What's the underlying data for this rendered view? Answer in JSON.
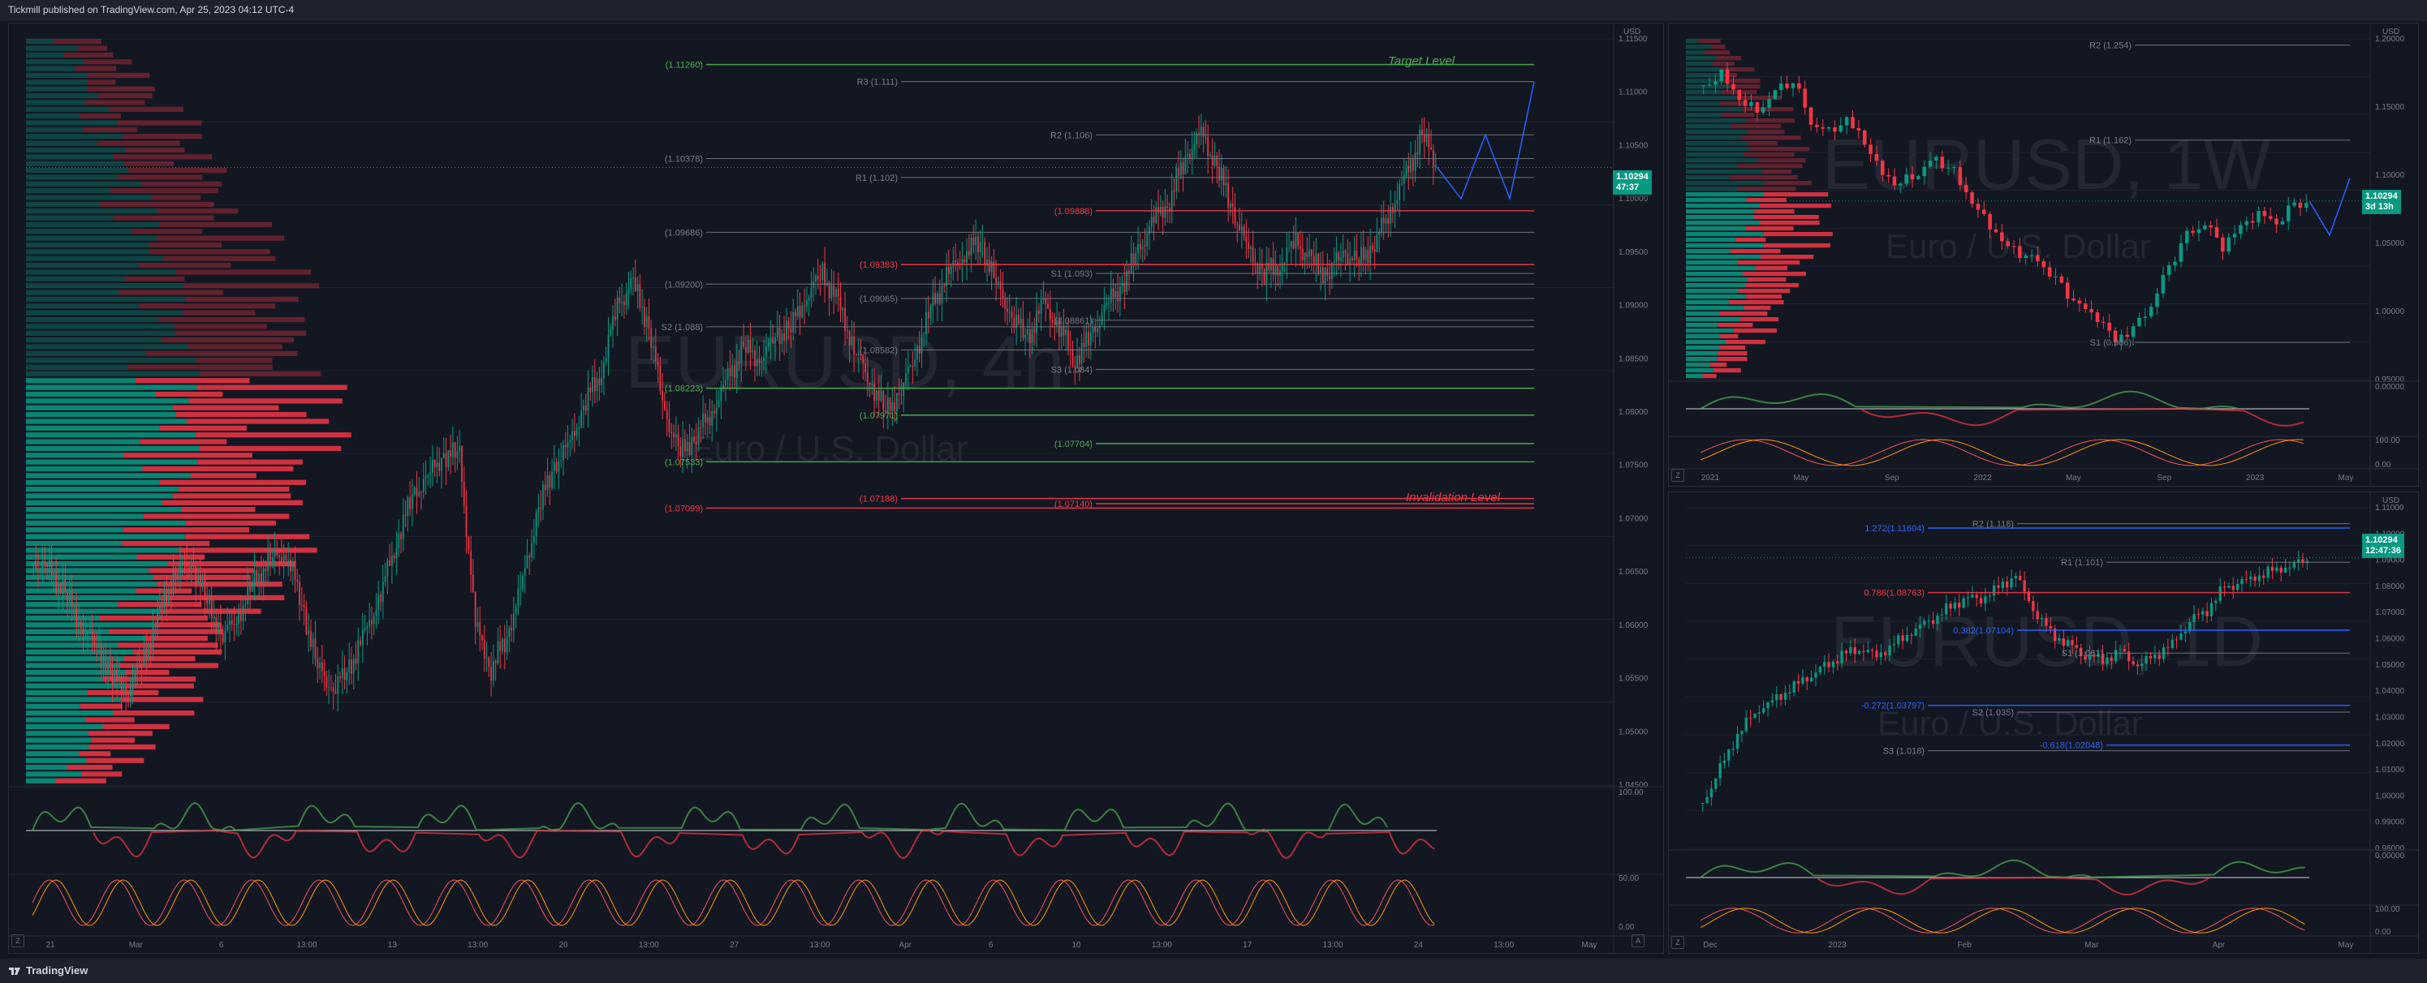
{
  "header": {
    "published": "Tickmill published on TradingView.com, Apr 25, 2023 04:12 UTC-4"
  },
  "footer": {
    "brand": "TradingView",
    "logo_icon": "tradingview-logo-icon"
  },
  "colors": {
    "bull": "#089981",
    "bear": "#f23645",
    "bg": "#131722",
    "target": "#4caf50",
    "invalid": "#f23645",
    "projection": "#2962ff"
  },
  "main": {
    "symbol_watermark": "EURUSD, 4h",
    "desc_watermark": "Euro / U.S. Dollar",
    "annotations": {
      "target": "Target Level",
      "invalidation": "Invalidation Level"
    },
    "price_badge": {
      "price": "1.10294",
      "countdown": "47:37"
    },
    "axis_currency": "USD",
    "zoom_label": "Z",
    "auto_label": "A",
    "chart_data": {
      "type": "candlestick",
      "title": "EURUSD, 4h",
      "x_labels": [
        "21",
        "Mar",
        "6",
        "13:00",
        "13",
        "13:00",
        "20",
        "13:00",
        "27",
        "13:00",
        "Apr",
        "6",
        "10",
        "13:00",
        "17",
        "13:00",
        "24",
        "13:00",
        "May"
      ],
      "ylim": [
        1.045,
        1.115
      ],
      "price_ticks": [
        "1.11500",
        "1.11000",
        "1.10500",
        "1.10000",
        "1.09500",
        "1.09000",
        "1.08500",
        "1.08000",
        "1.07500",
        "1.07000",
        "1.06500",
        "1.06000",
        "1.05500",
        "1.05000",
        "1.04500"
      ],
      "levels": [
        {
          "label": "(1.11260)",
          "value": 1.1126,
          "color": "#4caf50"
        },
        {
          "label": "R3 (1.111)",
          "value": 1.111,
          "color": "#787b86"
        },
        {
          "label": "R2 (1.106)",
          "value": 1.106,
          "color": "#787b86"
        },
        {
          "label": "(1.10378)",
          "value": 1.10378,
          "color": "#787b86"
        },
        {
          "label": "R1 (1.102)",
          "value": 1.102,
          "color": "#787b86"
        },
        {
          "label": "(1.09888)",
          "value": 1.09888,
          "color": "#f23645"
        },
        {
          "label": "(1.09686)",
          "value": 1.09686,
          "color": "#787b86"
        },
        {
          "label": "(1.09383)",
          "value": 1.09383,
          "color": "#f23645"
        },
        {
          "label": "S1 (1.093)",
          "value": 1.093,
          "color": "#787b86"
        },
        {
          "label": "(1.09200)",
          "value": 1.092,
          "color": "#787b86"
        },
        {
          "label": "(1.09065)",
          "value": 1.09065,
          "color": "#787b86"
        },
        {
          "label": "(1.08861)",
          "value": 1.08861,
          "color": "#787b86"
        },
        {
          "label": "S2 (1.088)",
          "value": 1.088,
          "color": "#787b86"
        },
        {
          "label": "(1.08582)",
          "value": 1.08582,
          "color": "#787b86"
        },
        {
          "label": "S3 (1.084)",
          "value": 1.084,
          "color": "#787b86"
        },
        {
          "label": "(1.08223)",
          "value": 1.08223,
          "color": "#4caf50"
        },
        {
          "label": "(1.07971)",
          "value": 1.07971,
          "color": "#4caf50"
        },
        {
          "label": "(1.07704)",
          "value": 1.07704,
          "color": "#4caf50"
        },
        {
          "label": "(1.07533)",
          "value": 1.07533,
          "color": "#4caf50"
        },
        {
          "label": "(1.07188)",
          "value": 1.07188,
          "color": "#f23645"
        },
        {
          "label": "(1.07140)",
          "value": 1.0714,
          "color": "#f23645"
        },
        {
          "label": "(1.07099)",
          "value": 1.07099,
          "color": "#f23645"
        }
      ],
      "close_path": [
        1.066,
        1.065,
        1.063,
        1.06,
        1.058,
        1.055,
        1.054,
        1.057,
        1.061,
        1.065,
        1.066,
        1.062,
        1.059,
        1.061,
        1.064,
        1.066,
        1.067,
        1.062,
        1.056,
        1.054,
        1.056,
        1.059,
        1.063,
        1.068,
        1.072,
        1.074,
        1.076,
        1.076,
        1.06,
        1.056,
        1.059,
        1.064,
        1.071,
        1.075,
        1.077,
        1.081,
        1.084,
        1.09,
        1.092,
        1.088,
        1.08,
        1.076,
        1.078,
        1.08,
        1.083,
        1.086,
        1.085,
        1.087,
        1.088,
        1.091,
        1.093,
        1.09,
        1.086,
        1.083,
        1.08,
        1.082,
        1.086,
        1.09,
        1.093,
        1.095,
        1.096,
        1.092,
        1.089,
        1.087,
        1.09,
        1.088,
        1.085,
        1.087,
        1.09,
        1.092,
        1.095,
        1.098,
        1.1,
        1.104,
        1.106,
        1.103,
        1.099,
        1.095,
        1.093,
        1.094,
        1.096,
        1.094,
        1.093,
        1.095,
        1.094,
        1.096,
        1.099,
        1.102,
        1.106,
        1.103
      ],
      "projection": [
        1.103,
        1.1,
        1.106,
        1.1,
        1.111
      ]
    },
    "indicator_axis": [
      "100.00",
      "50.00",
      "0.00"
    ]
  },
  "weekly": {
    "symbol_watermark": "EURUSD, 1W",
    "desc_watermark": "Euro / U.S. Dollar",
    "price_badge": {
      "price": "1.10294",
      "countdown": "3d 13h"
    },
    "axis_currency": "USD",
    "zoom_label": "Z",
    "chart_data": {
      "type": "candlestick",
      "title": "EURUSD, 1W",
      "x_labels": [
        "2021",
        "May",
        "Sep",
        "2022",
        "May",
        "Sep",
        "2023",
        "May"
      ],
      "ylim": [
        0.93,
        1.26
      ],
      "price_ticks": [
        "1.20000",
        "1.15000",
        "1.10000",
        "1.05000",
        "1.00000",
        "0.95000"
      ],
      "levels": [
        {
          "label": "R2 (1.254)",
          "value": 1.254,
          "color": "#787b86"
        },
        {
          "label": "R1 (1.162)",
          "value": 1.162,
          "color": "#787b86"
        },
        {
          "label": "S1 (0.966)",
          "value": 0.966,
          "color": "#787b86"
        }
      ],
      "close_path": [
        1.215,
        1.225,
        1.2,
        1.19,
        1.21,
        1.22,
        1.18,
        1.17,
        1.18,
        1.16,
        1.13,
        1.12,
        1.13,
        1.145,
        1.13,
        1.1,
        1.08,
        1.06,
        1.05,
        1.04,
        1.02,
        1.0,
        0.99,
        0.97,
        0.98,
        1.0,
        1.04,
        1.07,
        1.08,
        1.06,
        1.08,
        1.09,
        1.08,
        1.1,
        1.103
      ],
      "projection": [
        1.103,
        1.07,
        1.125
      ]
    },
    "indicator_axis": [
      "0.00000",
      "100.00",
      "0.00"
    ]
  },
  "daily": {
    "symbol_watermark": "EURUSD, 1D",
    "desc_watermark": "Euro / U.S. Dollar",
    "price_badge": {
      "price": "1.10294",
      "countdown": "12:47:36"
    },
    "axis_currency": "USD",
    "zoom_label": "Z",
    "chart_data": {
      "type": "candlestick",
      "title": "EURUSD, 1D",
      "x_labels": [
        "Dec",
        "2023",
        "Feb",
        "Mar",
        "Apr",
        "May"
      ],
      "ylim": [
        0.975,
        1.125
      ],
      "price_ticks": [
        "1.11000",
        "1.10000",
        "1.09000",
        "1.08000",
        "1.07000",
        "1.06000",
        "1.05000",
        "1.04000",
        "1.03000",
        "1.02000",
        "1.01000",
        "1.00000",
        "0.99000",
        "0.98000"
      ],
      "levels": [
        {
          "label": "1.272(1.11604)",
          "value": 1.11604,
          "color": "#2962ff"
        },
        {
          "label": "R2 (1.118)",
          "value": 1.118,
          "color": "#787b86"
        },
        {
          "label": "R1 (1.101)",
          "value": 1.101,
          "color": "#787b86"
        },
        {
          "label": "0.786(1.08763)",
          "value": 1.08763,
          "color": "#f23645"
        },
        {
          "label": "0.382(1.07104)",
          "value": 1.07104,
          "color": "#2962ff"
        },
        {
          "label": "S1 (1.061)",
          "value": 1.061,
          "color": "#787b86"
        },
        {
          "label": "-0.272(1.03797)",
          "value": 1.03797,
          "color": "#2962ff"
        },
        {
          "label": "S2 (1.035)",
          "value": 1.035,
          "color": "#787b86"
        },
        {
          "label": "-0.618(1.02048)",
          "value": 1.02048,
          "color": "#2962ff"
        },
        {
          "label": "S3 (1.018)",
          "value": 1.018,
          "color": "#787b86"
        }
      ],
      "close_path": [
        0.995,
        1.01,
        1.025,
        1.035,
        1.04,
        1.045,
        1.05,
        1.055,
        1.06,
        1.063,
        1.06,
        1.065,
        1.07,
        1.075,
        1.08,
        1.085,
        1.085,
        1.09,
        1.095,
        1.08,
        1.07,
        1.065,
        1.06,
        1.058,
        1.062,
        1.055,
        1.06,
        1.065,
        1.075,
        1.08,
        1.09,
        1.092,
        1.095,
        1.098,
        1.1,
        1.103
      ],
      "projection": []
    },
    "indicator_axis": [
      "0.00000",
      "100.00",
      "0.00"
    ]
  }
}
